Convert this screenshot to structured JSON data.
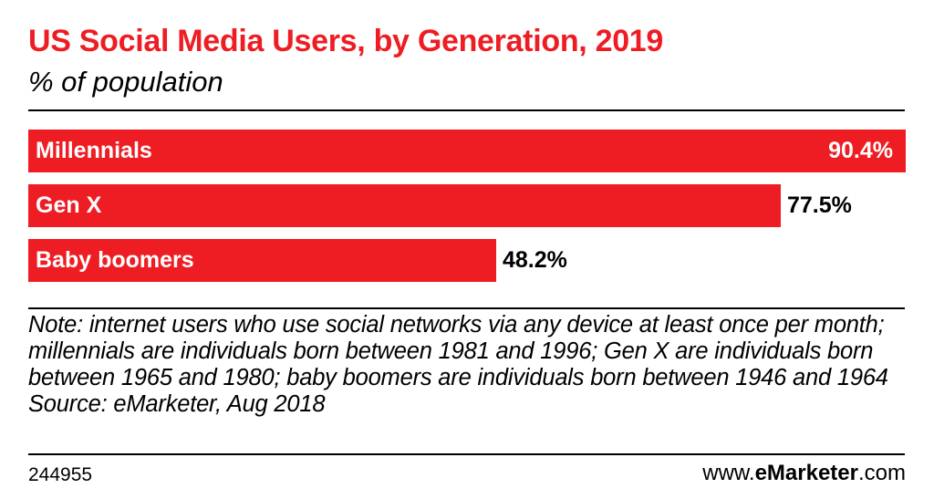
{
  "chart_data": {
    "type": "bar",
    "orientation": "horizontal",
    "title": "US Social Media Users, by Generation, 2019",
    "subtitle": "% of population",
    "categories": [
      "Millennials",
      "Gen X",
      "Baby boomers"
    ],
    "values": [
      90.4,
      77.5,
      48.2
    ],
    "value_labels": [
      "90.4%",
      "77.5%",
      "48.2%"
    ],
    "xlim": [
      0,
      90.4
    ],
    "grid": false,
    "bar_color": "#ee1d23"
  },
  "note": {
    "text": "Note: internet users who use social networks via any device at least once per month; millennials are individuals born between 1981 and 1996; Gen X are individuals born between 1965 and 1980; baby boomers are individuals born between 1946 and 1964",
    "source": "Source: eMarketer, Aug 2018"
  },
  "footer": {
    "chart_id": "244955",
    "brand_prefix": "www.",
    "brand_bold": "eMarketer",
    "brand_suffix": ".com"
  }
}
